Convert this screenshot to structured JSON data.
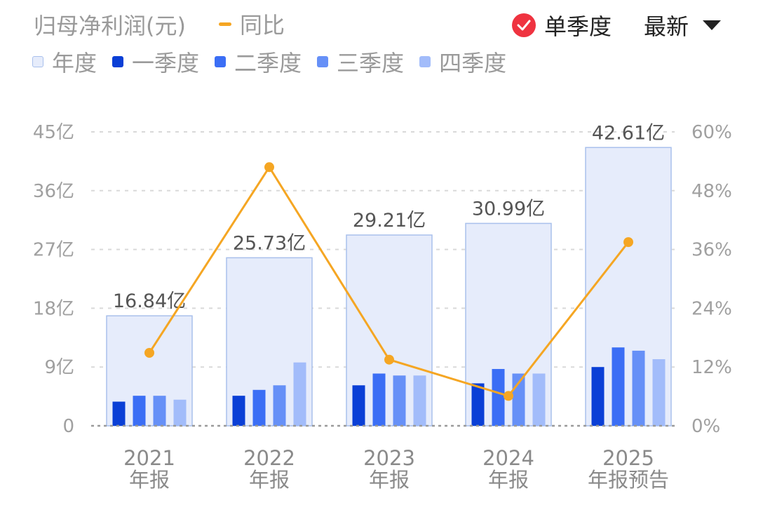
{
  "header": {
    "title": "归母净利润(元)",
    "yoy_label": "同比",
    "quarter_toggle_label": "单季度",
    "latest_label": "最新",
    "quarter_toggle_checked": true
  },
  "legend": [
    {
      "key": "annual",
      "label": "年度"
    },
    {
      "key": "q1",
      "label": "一季度"
    },
    {
      "key": "q2",
      "label": "二季度"
    },
    {
      "key": "q3",
      "label": "三季度"
    },
    {
      "key": "q4",
      "label": "四季度"
    }
  ],
  "colors": {
    "annual_fill": "#e6ecfb",
    "annual_stroke": "#a9c0ec",
    "q1": "#0a3fd6",
    "q2": "#3b6ef5",
    "q3": "#6690f7",
    "q4": "#a2bcfa",
    "yoy": "#f5a623",
    "check": "#ef3340",
    "grid": "#d9d9d9"
  },
  "chart_data": {
    "type": "bar",
    "categories": [
      {
        "line1": "2021",
        "line2": "年报"
      },
      {
        "line1": "2022",
        "line2": "年报"
      },
      {
        "line1": "2023",
        "line2": "年报"
      },
      {
        "line1": "2024",
        "line2": "年报"
      },
      {
        "line1": "2025",
        "line2": "年报预告"
      }
    ],
    "annual_values": [
      16.84,
      25.73,
      29.21,
      30.99,
      42.61
    ],
    "annual_labels": [
      "16.84亿",
      "25.73亿",
      "29.21亿",
      "30.99亿",
      "42.61亿"
    ],
    "quarterly_series": [
      {
        "name": "一季度",
        "values": [
          3.7,
          4.6,
          6.2,
          6.5,
          9.0
        ]
      },
      {
        "name": "二季度",
        "values": [
          4.6,
          5.5,
          8.0,
          8.7,
          12.0
        ]
      },
      {
        "name": "三季度",
        "values": [
          4.6,
          6.2,
          7.7,
          8.0,
          11.5
        ]
      },
      {
        "name": "四季度",
        "values": [
          4.0,
          9.7,
          7.7,
          8.0,
          10.2
        ]
      }
    ],
    "yoy": {
      "name": "同比",
      "values": [
        14.9,
        52.8,
        13.5,
        6.1,
        37.5
      ]
    },
    "left_axis": {
      "ticks": [
        "0",
        "9亿",
        "18亿",
        "27亿",
        "36亿",
        "45亿"
      ],
      "ylim": [
        0,
        45
      ]
    },
    "right_axis": {
      "ticks": [
        "0%",
        "12%",
        "24%",
        "36%",
        "48%",
        "60%"
      ],
      "ylim": [
        0,
        60
      ]
    },
    "grid": true
  }
}
